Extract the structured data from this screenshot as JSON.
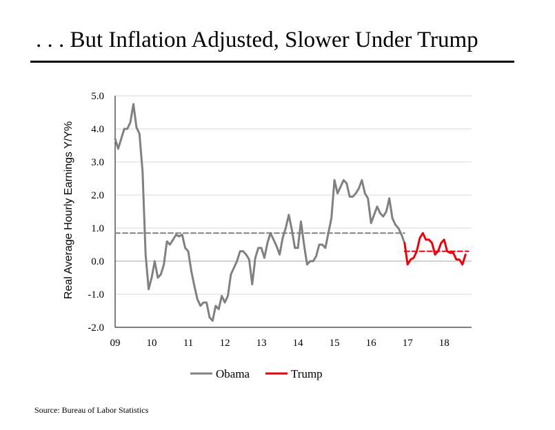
{
  "title": ". . . But Inflation Adjusted, Slower Under Trump",
  "source": "Source: Bureau of Labor Statistics",
  "colors": {
    "obama": "#808080",
    "trump": "#e8000b",
    "grid": "#d9d9d9",
    "axis": "#000000"
  },
  "chart_data": {
    "type": "line",
    "title": ". . . But Inflation Adjusted, Slower Under Trump",
    "xlabel": "",
    "ylabel": "Real Average Hourly Earnings Y/Y%",
    "ylim": [
      -2.0,
      5.0
    ],
    "xlim": [
      2009,
      2018.75
    ],
    "yticks": [
      -2.0,
      -1.0,
      0.0,
      1.0,
      2.0,
      3.0,
      4.0,
      5.0
    ],
    "ytick_labels": [
      "-2.0",
      "-1.0",
      "0.0",
      "1.0",
      "2.0",
      "3.0",
      "4.0",
      "5.0"
    ],
    "xticks": [
      2009,
      2010,
      2011,
      2012,
      2013,
      2014,
      2015,
      2016,
      2017,
      2018
    ],
    "xtick_labels": [
      "09",
      "10",
      "11",
      "12",
      "13",
      "14",
      "15",
      "16",
      "17",
      "18"
    ],
    "grid": true,
    "legend": "bottom-center",
    "series": [
      {
        "name": "Obama",
        "color": "#808080",
        "style": "solid",
        "start": 2009.0,
        "step": 0.08333,
        "values": [
          3.7,
          3.4,
          3.7,
          4.0,
          4.0,
          4.2,
          4.75,
          4.05,
          3.85,
          2.7,
          0.2,
          -0.85,
          -0.5,
          0.0,
          -0.5,
          -0.4,
          -0.1,
          0.6,
          0.5,
          0.65,
          0.8,
          0.75,
          0.8,
          0.4,
          0.3,
          -0.3,
          -0.75,
          -1.15,
          -1.35,
          -1.25,
          -1.25,
          -1.7,
          -1.8,
          -1.35,
          -1.45,
          -1.05,
          -1.25,
          -1.05,
          -0.4,
          -0.2,
          0.0,
          0.3,
          0.3,
          0.2,
          0.05,
          -0.7,
          0.1,
          0.4,
          0.4,
          0.1,
          0.55,
          0.85,
          0.65,
          0.45,
          0.2,
          0.7,
          1.0,
          1.4,
          0.95,
          0.4,
          0.4,
          1.2,
          0.5,
          -0.1,
          0.0,
          0.0,
          0.15,
          0.5,
          0.5,
          0.4,
          0.85,
          1.3,
          2.45,
          2.05,
          2.25,
          2.45,
          2.35,
          1.95,
          1.95,
          2.05,
          2.2,
          2.45,
          2.05,
          1.9,
          1.15,
          1.4,
          1.65,
          1.45,
          1.35,
          1.5,
          1.9,
          1.3,
          1.1,
          1.0,
          0.8,
          0.55
        ]
      },
      {
        "name": "Trump",
        "color": "#e8000b",
        "style": "solid",
        "start": 2016.9167,
        "step": 0.08333,
        "values": [
          0.55,
          -0.1,
          0.05,
          0.1,
          0.3,
          0.7,
          0.85,
          0.65,
          0.65,
          0.55,
          0.2,
          0.3,
          0.55,
          0.65,
          0.3,
          0.25,
          0.25,
          0.05,
          0.05,
          -0.1,
          0.2
        ]
      },
      {
        "name": "Obama average",
        "color": "#808080",
        "style": "dashed",
        "x": [
          2009.0,
          2016.9167
        ],
        "values": [
          0.85,
          0.85
        ]
      },
      {
        "name": "Trump average",
        "color": "#e8000b",
        "style": "dashed",
        "x": [
          2016.9167,
          2018.6667
        ],
        "values": [
          0.3,
          0.3
        ]
      }
    ],
    "legend_entries": [
      {
        "label": "Obama",
        "color": "#808080"
      },
      {
        "label": "Trump",
        "color": "#e8000b"
      }
    ]
  }
}
